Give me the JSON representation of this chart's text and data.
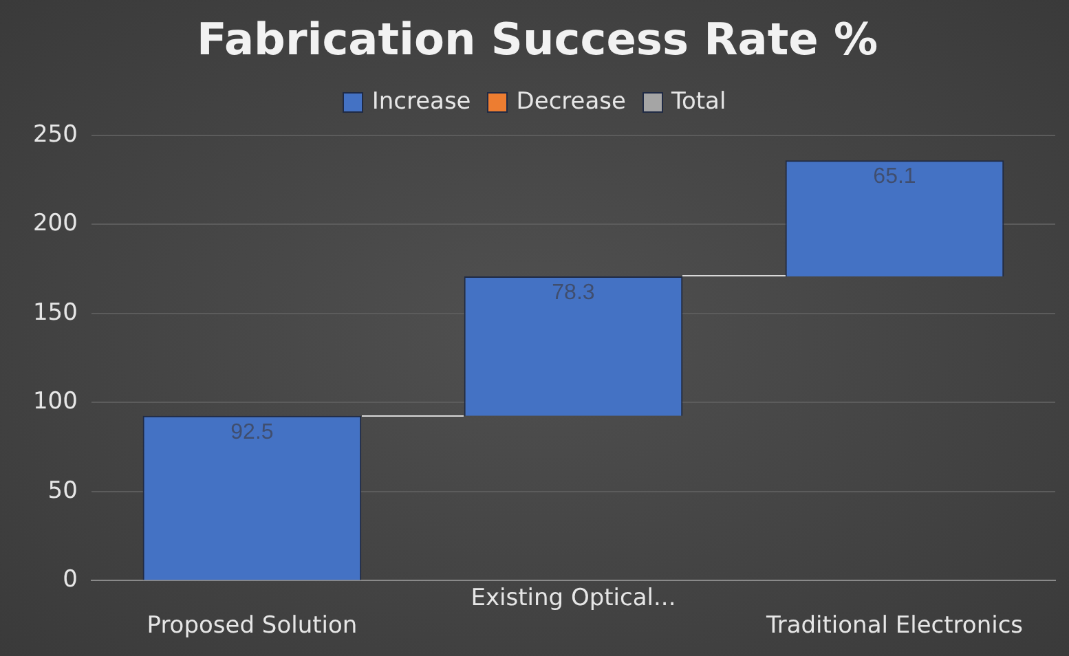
{
  "chart_data": {
    "type": "bar",
    "title": "Fabrication Success Rate %",
    "categories": [
      "Proposed Solution",
      "Existing Optical...",
      "Traditional Electronics"
    ],
    "series": [
      {
        "name": "Increase",
        "color": "#4472c4",
        "values": [
          92.5,
          78.3,
          65.1
        ],
        "base": [
          0,
          92.5,
          170.8
        ]
      },
      {
        "name": "Decrease",
        "color": "#ed7d31",
        "values": [
          null,
          null,
          null
        ]
      },
      {
        "name": "Total",
        "color": "#a5a5a5",
        "values": [
          null,
          null,
          null
        ]
      }
    ],
    "ylim": [
      0,
      250
    ],
    "yticks": [
      0,
      50,
      100,
      150,
      200,
      250
    ],
    "grid": "y",
    "legend": "top",
    "data_labels": true
  }
}
